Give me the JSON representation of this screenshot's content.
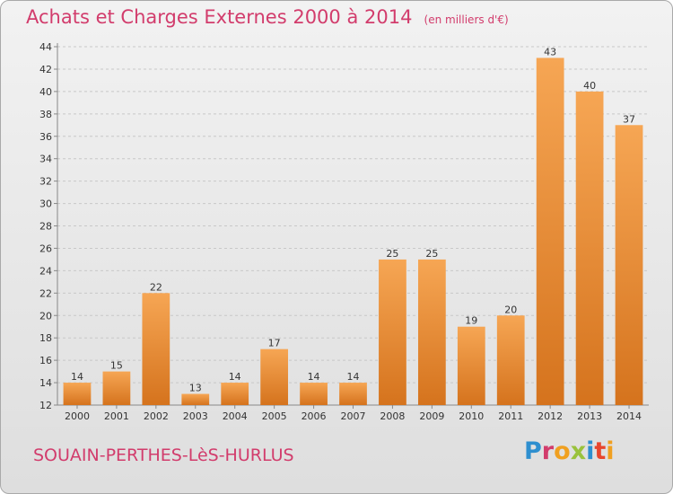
{
  "title": "Achats et Charges Externes 2000 à 2014",
  "subtitle": "(en milliers d'€)",
  "location": "SOUAIN-PERTHES-LèS-HURLUS",
  "brand": "Proxiti",
  "colors": {
    "title": "#d23c6c",
    "bar_light": "#f6a654",
    "bar_dark": "#d5731d",
    "grid": "#c8c8c8",
    "logo_letters": [
      "#2e8fcf",
      "#d23c6c",
      "#f0a020",
      "#9ac23c",
      "#2e8fcf",
      "#e8462d",
      "#f0a020"
    ]
  },
  "chart_data": {
    "type": "bar",
    "title": "Achats et Charges Externes 2000 à 2014",
    "subtitle": "(en milliers d'€)",
    "categories": [
      "2000",
      "2001",
      "2002",
      "2003",
      "2004",
      "2005",
      "2006",
      "2007",
      "2008",
      "2009",
      "2010",
      "2011",
      "2012",
      "2013",
      "2014"
    ],
    "values": [
      14,
      15,
      22,
      13,
      14,
      17,
      14,
      14,
      25,
      25,
      19,
      20,
      43,
      40,
      37
    ],
    "ylim": [
      12,
      44
    ],
    "yticks": [
      12,
      14,
      16,
      18,
      20,
      22,
      24,
      26,
      28,
      30,
      32,
      34,
      36,
      38,
      40,
      42,
      44
    ],
    "grid": true,
    "data_labels": true
  }
}
